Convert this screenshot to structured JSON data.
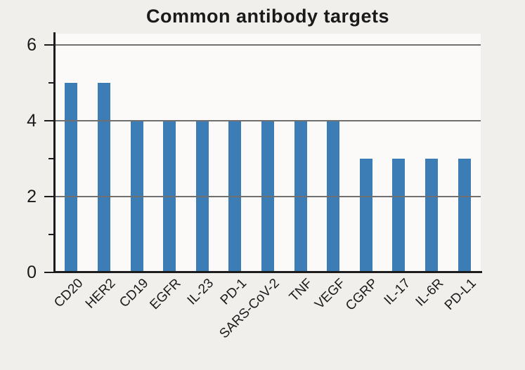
{
  "chart_data": {
    "type": "bar",
    "title": "Common antibody targets",
    "categories": [
      "CD20",
      "HER2",
      "CD19",
      "EGFR",
      "IL-23",
      "PD-1",
      "SARS-CoV-2",
      "TNF",
      "VEGF",
      "CGRP",
      "IL-17",
      "IL-6R",
      "PD-L1"
    ],
    "values": [
      5,
      5,
      4,
      4,
      4,
      4,
      4,
      4,
      4,
      3,
      3,
      3,
      3
    ],
    "xlabel": "",
    "ylabel": "",
    "ylim": [
      0,
      6.3
    ],
    "yticks_major": [
      0,
      2,
      4,
      6
    ],
    "yticks_minor": [
      1,
      3,
      5
    ],
    "gridlines": [
      2,
      4,
      6
    ],
    "grid": "horizontal",
    "legend": "none",
    "bar_orientation": "vertical",
    "xtick_rotation_deg": 45,
    "colors": {
      "bar": "#3c7db5",
      "grid": "#6f6f6f",
      "axis": "#1c1c1c",
      "text": "#1a1a1a",
      "figure_bg": "#f1efec",
      "plot_bg": "#fbfaf8"
    }
  }
}
